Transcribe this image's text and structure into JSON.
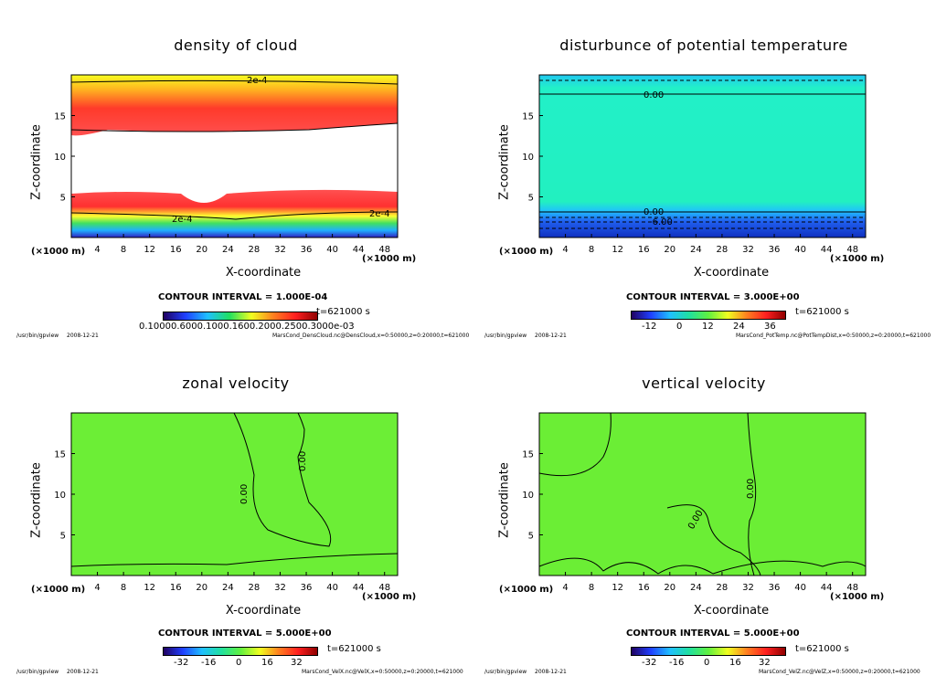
{
  "panels": [
    {
      "id": "density",
      "title": "density of cloud",
      "ylabel": "Z-coordinate",
      "xlabel": "X-coordinate",
      "unit_left": "(×1000 m)",
      "unit_right": "(×1000 m)",
      "contour_interval": "CONTOUR INTERVAL = 1.000E-04",
      "time": "t=621000 s",
      "footer_path": "/usr/bin/gpview",
      "footer_date": "2008-12-21",
      "footer_file": "MarsCond_DensCloud.nc@DensCloud,x=0:50000,z=0:20000,t=621000",
      "colorbar_labels": "0.10000.6000.1000.1600.2000.2500.3000e-03",
      "contour_labels": [
        "2e-4",
        "2e-4",
        "2e-4"
      ]
    },
    {
      "id": "ptemp",
      "title": "disturbunce of potential temperature",
      "ylabel": "Z-coordinate",
      "xlabel": "X-coordinate",
      "unit_left": "(×1000 m)",
      "unit_right": "(×1000 m)",
      "contour_interval": "CONTOUR INTERVAL = 3.000E+00",
      "time": "t=621000 s",
      "footer_path": "/usr/bin/gpview",
      "footer_date": "2008-12-21",
      "footer_file": "MarsCond_PotTemp.nc@PotTempDist,x=0:50000,z=0:20000,t=621000",
      "colorbar_ticks": [
        "-12",
        "0",
        "12",
        "24",
        "36"
      ],
      "contour_labels": [
        "0.00",
        "0.00",
        "-6.00"
      ]
    },
    {
      "id": "zonal",
      "title": "zonal velocity",
      "ylabel": "Z-coordinate",
      "xlabel": "X-coordinate",
      "unit_left": "(×1000 m)",
      "unit_right": "(×1000 m)",
      "contour_interval": "CONTOUR INTERVAL = 5.000E+00",
      "time": "t=621000 s",
      "footer_path": "/usr/bin/gpview",
      "footer_date": "2008-12-21",
      "footer_file": "MarsCond_VelX.nc@VelX,x=0:50000,z=0:20000,t=621000",
      "colorbar_ticks": [
        "-32",
        "-16",
        "0",
        "16",
        "32"
      ],
      "contour_labels": [
        "0.00",
        "0.00"
      ]
    },
    {
      "id": "vertical",
      "title": "vertical velocity",
      "ylabel": "Z-coordinate",
      "xlabel": "X-coordinate",
      "unit_left": "(×1000 m)",
      "unit_right": "(×1000 m)",
      "contour_interval": "CONTOUR INTERVAL = 5.000E+00",
      "time": "t=621000 s",
      "footer_path": "/usr/bin/gpview",
      "footer_date": "2008-12-21",
      "footer_file": "MarsCond_VelZ.nc@VelZ,x=0:50000,z=0:20000,t=621000",
      "colorbar_ticks": [
        "-32",
        "-16",
        "0",
        "16",
        "32"
      ],
      "contour_labels": [
        "0.00",
        "0.00"
      ]
    }
  ],
  "chart_data": [
    {
      "type": "heatmap",
      "title": "density of cloud",
      "xlabel": "X-coordinate",
      "ylabel": "Z-coordinate",
      "xlim": [
        0,
        50
      ],
      "ylim": [
        0,
        20
      ],
      "x_ticks": [
        4,
        8,
        12,
        16,
        20,
        24,
        28,
        32,
        36,
        40,
        44,
        48
      ],
      "y_ticks": [
        5,
        10,
        15
      ],
      "contour_interval": 0.0001,
      "colors": {
        "low": "#ffff00",
        "mid": "#ff3030",
        "high": "#ffffff"
      }
    },
    {
      "type": "heatmap",
      "title": "disturbunce of potential temperature",
      "xlabel": "X-coordinate",
      "ylabel": "Z-coordinate",
      "xlim": [
        0,
        50
      ],
      "ylim": [
        0,
        20
      ],
      "x_ticks": [
        4,
        8,
        12,
        16,
        20,
        24,
        28,
        32,
        36,
        40,
        44,
        48
      ],
      "y_ticks": [
        5,
        10,
        15
      ],
      "contour_interval": 3.0,
      "colorbar_ticks": [
        -12,
        0,
        12,
        24,
        36
      ],
      "colors": {
        "field": "#22f0c0",
        "low": "#1040e0"
      }
    },
    {
      "type": "heatmap",
      "title": "zonal velocity",
      "xlabel": "X-coordinate",
      "ylabel": "Z-coordinate",
      "xlim": [
        0,
        50
      ],
      "ylim": [
        0,
        20
      ],
      "x_ticks": [
        4,
        8,
        12,
        16,
        20,
        24,
        28,
        32,
        36,
        40,
        44,
        48
      ],
      "y_ticks": [
        5,
        10,
        15
      ],
      "contour_interval": 5.0,
      "colorbar_ticks": [
        -32,
        -16,
        0,
        16,
        32
      ],
      "colors": {
        "field": "#66ee33"
      }
    },
    {
      "type": "heatmap",
      "title": "vertical velocity",
      "xlabel": "X-coordinate",
      "ylabel": "Z-coordinate",
      "xlim": [
        0,
        50
      ],
      "ylim": [
        0,
        20
      ],
      "x_ticks": [
        4,
        8,
        12,
        16,
        20,
        24,
        28,
        32,
        36,
        40,
        44,
        48
      ],
      "y_ticks": [
        5,
        10,
        15
      ],
      "contour_interval": 5.0,
      "colorbar_ticks": [
        -32,
        -16,
        0,
        16,
        32
      ],
      "colors": {
        "field": "#66ee33"
      }
    }
  ]
}
